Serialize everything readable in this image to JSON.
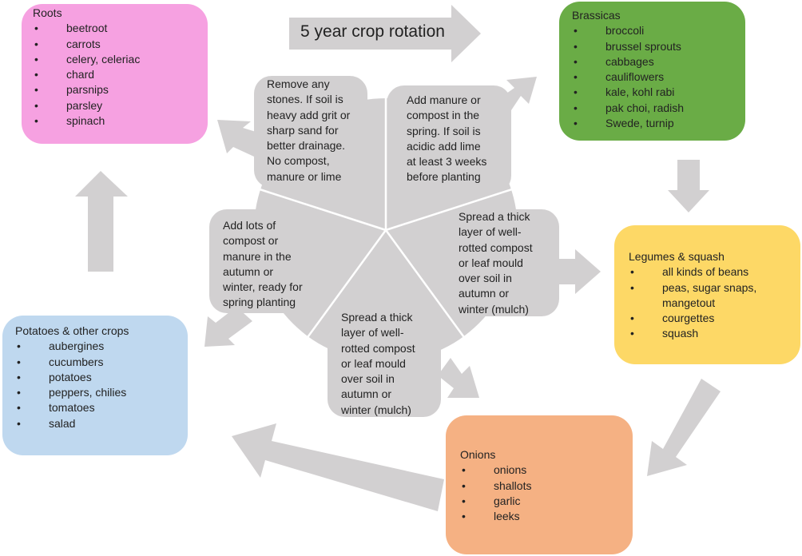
{
  "title": "5 year crop rotation",
  "colors": {
    "roots": "#f6a1e1",
    "brassicas": "#6aac46",
    "legumes": "#fdd866",
    "onions": "#f5b183",
    "potatoes": "#bfd8ef",
    "arrow": "#d2d0d1"
  },
  "groups": {
    "roots": {
      "heading": "Roots",
      "items": [
        "beetroot",
        "carrots",
        "celery, celeriac",
        "chard",
        "parsnips",
        "parsley",
        "spinach"
      ]
    },
    "brassicas": {
      "heading": "Brassicas",
      "items": [
        "broccoli",
        "brussel sprouts",
        "cabbages",
        "cauliflowers",
        "kale, kohl rabi",
        "pak choi, radish",
        "Swede, turnip"
      ]
    },
    "legumes": {
      "heading": "Legumes & squash",
      "items": [
        "all kinds of beans",
        "peas, sugar snaps, mangetout",
        "courgettes",
        "squash"
      ]
    },
    "onions": {
      "heading": "Onions",
      "items": [
        "onions",
        "shallots",
        "garlic",
        "leeks"
      ]
    },
    "potatoes": {
      "heading": "Potatoes & other crops",
      "items": [
        "aubergines",
        "cucumbers",
        "potatoes",
        "peppers, chilies",
        "tomatoes",
        "salad"
      ]
    }
  },
  "notes": {
    "roots": [
      "Remove any",
      "stones. If soil is",
      "heavy add grit or",
      "sharp sand for",
      "better drainage.",
      "No compost,",
      "manure or lime"
    ],
    "brassicas": [
      "Add manure or",
      "compost in the",
      "spring.  If soil is",
      "acidic add lime",
      "at least 3 weeks",
      "before planting"
    ],
    "legumes": [
      "Spread a thick",
      "layer of well-",
      "rotted compost",
      "or leaf mould",
      "over soil in",
      "autumn or",
      "winter (mulch)"
    ],
    "onions": [
      "Spread a thick",
      "layer of well-",
      "rotted compost",
      "or leaf mould",
      "over soil in",
      "autumn or",
      "winter (mulch)"
    ],
    "potatoes": [
      "Add lots of",
      "compost or",
      "manure in the",
      "autumn or",
      "winter, ready for",
      "spring planting"
    ]
  }
}
